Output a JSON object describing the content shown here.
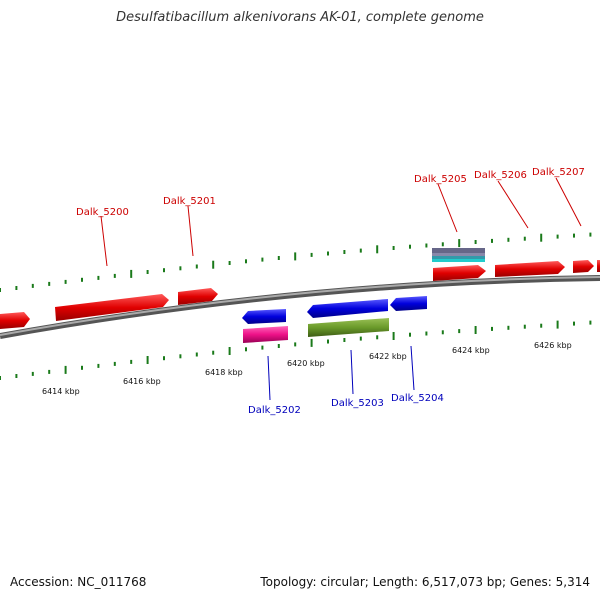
{
  "title": "Desulfatibacillum alkenivorans AK-01, complete genome",
  "footer": {
    "accession": "Accession: NC_011768",
    "summary": "Topology: circular; Length: 6,517,073 bp; Genes: 5,314"
  },
  "colors": {
    "forward_gene": "#e00000",
    "reverse_gene": "#0000dd",
    "label_forward": "#cc0000",
    "label_reverse": "#0000bb",
    "backbone": "#888888",
    "tick": "#1a7a1a",
    "gene_magenta": "#ee1188",
    "gene_olive": "#6a9a2a",
    "gene_slate": "#666688",
    "gene_cyan": "#22cccc"
  },
  "scale": {
    "tick_labels": [
      "6414 kbp",
      "6416 kbp",
      "6418 kbp",
      "6420 kbp",
      "6422 kbp",
      "6424 kbp",
      "6426 kbp"
    ]
  },
  "gene_labels": {
    "forward": [
      "Dalk_5200",
      "Dalk_5201",
      "Dalk_5205",
      "Dalk_5206",
      "Dalk_5207"
    ],
    "reverse": [
      "Dalk_5202",
      "Dalk_5203",
      "Dalk_5204"
    ]
  }
}
